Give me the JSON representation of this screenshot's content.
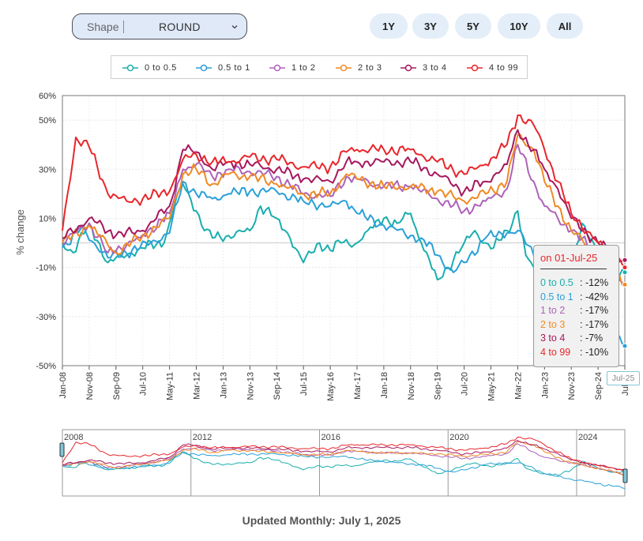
{
  "controls": {
    "shape_label": "Shape",
    "shape_value": "ROUND",
    "ranges": [
      "1Y",
      "3Y",
      "5Y",
      "10Y",
      "All"
    ]
  },
  "chart_data": {
    "type": "line",
    "title": "",
    "xlabel": "",
    "ylabel": "% change",
    "ylim": [
      -50,
      60
    ],
    "yticks": [
      60,
      50,
      30,
      10,
      -10,
      -30,
      -50
    ],
    "ytick_labels": [
      "60%",
      "50%",
      "30%",
      "10%",
      "-10%",
      "-30%",
      "-50%"
    ],
    "xlim": [
      "2008-01",
      "2025-07"
    ],
    "xticks": [
      "2008-01",
      "2008-11",
      "2009-09",
      "2010-07",
      "2011-05",
      "2012-03",
      "2013-01",
      "2013-11",
      "2014-09",
      "2015-07",
      "2016-05",
      "2017-03",
      "2018-01",
      "2018-11",
      "2019-09",
      "2020-07",
      "2021-05",
      "2022-03",
      "2023-01",
      "2023-11",
      "2024-09",
      "2025-07"
    ],
    "xtick_labels": [
      "Jan-08",
      "Nov-08",
      "Sep-09",
      "Jul-10",
      "May-11",
      "Mar-12",
      "Jan-13",
      "Nov-13",
      "Sep-14",
      "Jul-15",
      "May-16",
      "Mar-17",
      "Jan-18",
      "Nov-18",
      "Sep-19",
      "Jul-20",
      "May-21",
      "Mar-22",
      "Jan-23",
      "Nov-23",
      "Sep-24",
      "Jul-25"
    ],
    "grid": true,
    "legend": "top",
    "series": [
      {
        "name": "0 to 0.5",
        "color": "#1aaeae",
        "points": [
          [
            "2008-01",
            0
          ],
          [
            "2008-05",
            -4
          ],
          [
            "2008-11",
            8
          ],
          [
            "2009-06",
            -8
          ],
          [
            "2010-01",
            -5
          ],
          [
            "2010-06",
            -2
          ],
          [
            "2011-03",
            0
          ],
          [
            "2011-07",
            16
          ],
          [
            "2011-10",
            24
          ],
          [
            "2012-03",
            13
          ],
          [
            "2012-06",
            5
          ],
          [
            "2012-09",
            2
          ],
          [
            "2013-03",
            3
          ],
          [
            "2013-11",
            5
          ],
          [
            "2014-03",
            15
          ],
          [
            "2014-09",
            10
          ],
          [
            "2015-02",
            2
          ],
          [
            "2015-07",
            -8
          ],
          [
            "2016-01",
            0
          ],
          [
            "2016-05",
            -3
          ],
          [
            "2016-09",
            0
          ],
          [
            "2017-03",
            0
          ],
          [
            "2017-07",
            5
          ],
          [
            "2018-01",
            10
          ],
          [
            "2018-06",
            8
          ],
          [
            "2018-11",
            12
          ],
          [
            "2019-03",
            0
          ],
          [
            "2019-09",
            -15
          ],
          [
            "2020-01",
            -10
          ],
          [
            "2020-07",
            0
          ],
          [
            "2020-11",
            5
          ],
          [
            "2021-03",
            0
          ],
          [
            "2021-06",
            -2
          ],
          [
            "2021-11",
            5
          ],
          [
            "2022-03",
            13
          ],
          [
            "2022-06",
            -5
          ],
          [
            "2022-09",
            -10
          ],
          [
            "2023-01",
            -15
          ],
          [
            "2023-06",
            -18
          ],
          [
            "2023-11",
            -8
          ],
          [
            "2024-03",
            8
          ],
          [
            "2024-09",
            -5
          ],
          [
            "2025-03",
            -12
          ],
          [
            "2025-07",
            -12
          ]
        ]
      },
      {
        "name": "0.5 to 1",
        "color": "#2aa0d8",
        "points": [
          [
            "2008-01",
            -2
          ],
          [
            "2008-08",
            6
          ],
          [
            "2009-06",
            -6
          ],
          [
            "2010-06",
            -2
          ],
          [
            "2011-05",
            4
          ],
          [
            "2011-10",
            25
          ],
          [
            "2012-03",
            20
          ],
          [
            "2012-09",
            18
          ],
          [
            "2013-03",
            20
          ],
          [
            "2013-11",
            21
          ],
          [
            "2014-09",
            21
          ],
          [
            "2015-07",
            17
          ],
          [
            "2016-05",
            15
          ],
          [
            "2016-11",
            17
          ],
          [
            "2017-03",
            12
          ],
          [
            "2018-01",
            7
          ],
          [
            "2018-11",
            3
          ],
          [
            "2019-03",
            2
          ],
          [
            "2019-09",
            -5
          ],
          [
            "2020-03",
            -12
          ],
          [
            "2020-07",
            -8
          ],
          [
            "2021-03",
            2
          ],
          [
            "2021-11",
            4
          ],
          [
            "2022-03",
            5
          ],
          [
            "2022-09",
            -5
          ],
          [
            "2023-01",
            -15
          ],
          [
            "2023-06",
            -20
          ],
          [
            "2023-11",
            -25
          ],
          [
            "2024-06",
            -30
          ],
          [
            "2024-09",
            -33
          ],
          [
            "2025-03",
            -38
          ],
          [
            "2025-07",
            -42
          ]
        ]
      },
      {
        "name": "1 to 2",
        "color": "#ad62b8",
        "points": [
          [
            "2008-01",
            0
          ],
          [
            "2008-11",
            8
          ],
          [
            "2009-06",
            -4
          ],
          [
            "2010-06",
            2
          ],
          [
            "2011-05",
            12
          ],
          [
            "2011-10",
            30
          ],
          [
            "2012-03",
            32
          ],
          [
            "2012-09",
            27
          ],
          [
            "2013-03",
            30
          ],
          [
            "2013-11",
            29
          ],
          [
            "2014-09",
            27
          ],
          [
            "2015-07",
            20
          ],
          [
            "2016-05",
            19
          ],
          [
            "2016-11",
            27
          ],
          [
            "2017-03",
            26
          ],
          [
            "2018-01",
            23
          ],
          [
            "2018-11",
            23
          ],
          [
            "2019-09",
            18
          ],
          [
            "2020-07",
            13
          ],
          [
            "2021-03",
            17
          ],
          [
            "2021-11",
            22
          ],
          [
            "2022-03",
            40
          ],
          [
            "2022-09",
            25
          ],
          [
            "2023-01",
            15
          ],
          [
            "2023-06",
            10
          ],
          [
            "2023-11",
            5
          ],
          [
            "2024-09",
            -5
          ],
          [
            "2025-03",
            -12
          ],
          [
            "2025-07",
            -17
          ]
        ]
      },
      {
        "name": "2 to 3",
        "color": "#f08a24",
        "points": [
          [
            "2008-01",
            0
          ],
          [
            "2008-11",
            7
          ],
          [
            "2009-09",
            -4
          ],
          [
            "2010-07",
            3
          ],
          [
            "2011-05",
            10
          ],
          [
            "2011-10",
            28
          ],
          [
            "2012-03",
            30
          ],
          [
            "2012-09",
            24
          ],
          [
            "2013-03",
            28
          ],
          [
            "2013-11",
            27
          ],
          [
            "2014-09",
            24
          ],
          [
            "2015-07",
            20
          ],
          [
            "2016-05",
            20
          ],
          [
            "2016-11",
            28
          ],
          [
            "2017-03",
            26
          ],
          [
            "2018-01",
            23
          ],
          [
            "2018-11",
            23
          ],
          [
            "2019-09",
            21
          ],
          [
            "2020-07",
            17
          ],
          [
            "2021-03",
            20
          ],
          [
            "2021-11",
            25
          ],
          [
            "2022-03",
            44
          ],
          [
            "2022-09",
            38
          ],
          [
            "2023-01",
            25
          ],
          [
            "2023-06",
            15
          ],
          [
            "2023-11",
            5
          ],
          [
            "2024-09",
            -5
          ],
          [
            "2025-03",
            -12
          ],
          [
            "2025-07",
            -17
          ]
        ]
      },
      {
        "name": "3 to 4",
        "color": "#a6185e",
        "points": [
          [
            "2008-01",
            2
          ],
          [
            "2008-11",
            10
          ],
          [
            "2009-09",
            3
          ],
          [
            "2010-07",
            5
          ],
          [
            "2011-05",
            15
          ],
          [
            "2011-10",
            38
          ],
          [
            "2012-03",
            37
          ],
          [
            "2012-09",
            30
          ],
          [
            "2013-03",
            33
          ],
          [
            "2013-11",
            32
          ],
          [
            "2014-09",
            30
          ],
          [
            "2015-07",
            26
          ],
          [
            "2016-05",
            25
          ],
          [
            "2016-11",
            33
          ],
          [
            "2017-03",
            33
          ],
          [
            "2018-01",
            33
          ],
          [
            "2018-11",
            33
          ],
          [
            "2019-09",
            28
          ],
          [
            "2020-07",
            21
          ],
          [
            "2021-03",
            25
          ],
          [
            "2021-11",
            32
          ],
          [
            "2022-03",
            46
          ],
          [
            "2022-09",
            38
          ],
          [
            "2023-01",
            30
          ],
          [
            "2023-06",
            22
          ],
          [
            "2023-11",
            10
          ],
          [
            "2024-09",
            0
          ],
          [
            "2025-03",
            -5
          ],
          [
            "2025-07",
            -7
          ]
        ]
      },
      {
        "name": "4 to 99",
        "color": "#e8262b",
        "points": [
          [
            "2008-01",
            5
          ],
          [
            "2008-06",
            43
          ],
          [
            "2008-11",
            39
          ],
          [
            "2009-06",
            20
          ],
          [
            "2010-01",
            17
          ],
          [
            "2010-07",
            18
          ],
          [
            "2011-05",
            21
          ],
          [
            "2011-10",
            34
          ],
          [
            "2012-03",
            36
          ],
          [
            "2012-09",
            33
          ],
          [
            "2013-03",
            33
          ],
          [
            "2013-11",
            35
          ],
          [
            "2014-09",
            34
          ],
          [
            "2015-07",
            31
          ],
          [
            "2016-05",
            31
          ],
          [
            "2016-11",
            37
          ],
          [
            "2017-03",
            38
          ],
          [
            "2018-01",
            38
          ],
          [
            "2018-11",
            38
          ],
          [
            "2019-09",
            33
          ],
          [
            "2020-07",
            28
          ],
          [
            "2021-03",
            32
          ],
          [
            "2021-11",
            40
          ],
          [
            "2022-03",
            52
          ],
          [
            "2022-09",
            48
          ],
          [
            "2023-01",
            38
          ],
          [
            "2023-06",
            25
          ],
          [
            "2023-11",
            12
          ],
          [
            "2024-09",
            0
          ],
          [
            "2025-03",
            -5
          ],
          [
            "2025-07",
            -10
          ]
        ]
      }
    ],
    "navigator": {
      "year_labels": [
        "2008",
        "2012",
        "2016",
        "2020",
        "2024"
      ]
    }
  },
  "tooltip": {
    "date": "on 01-Jul-25",
    "rows": [
      {
        "name": "0 to 0.5",
        "value": ": -12%"
      },
      {
        "name": "0.5 to 1",
        "value": ": -42%"
      },
      {
        "name": "1 to 2",
        "value": ": -17%"
      },
      {
        "name": "2 to 3",
        "value": ": -17%"
      },
      {
        "name": "3 to 4",
        "value": ": -7%"
      },
      {
        "name": "4 to 99",
        "value": ": -10%"
      }
    ]
  },
  "x_flag": "Jul-25",
  "footer": {
    "updated": "Updated Monthly: July 1, 2025"
  }
}
